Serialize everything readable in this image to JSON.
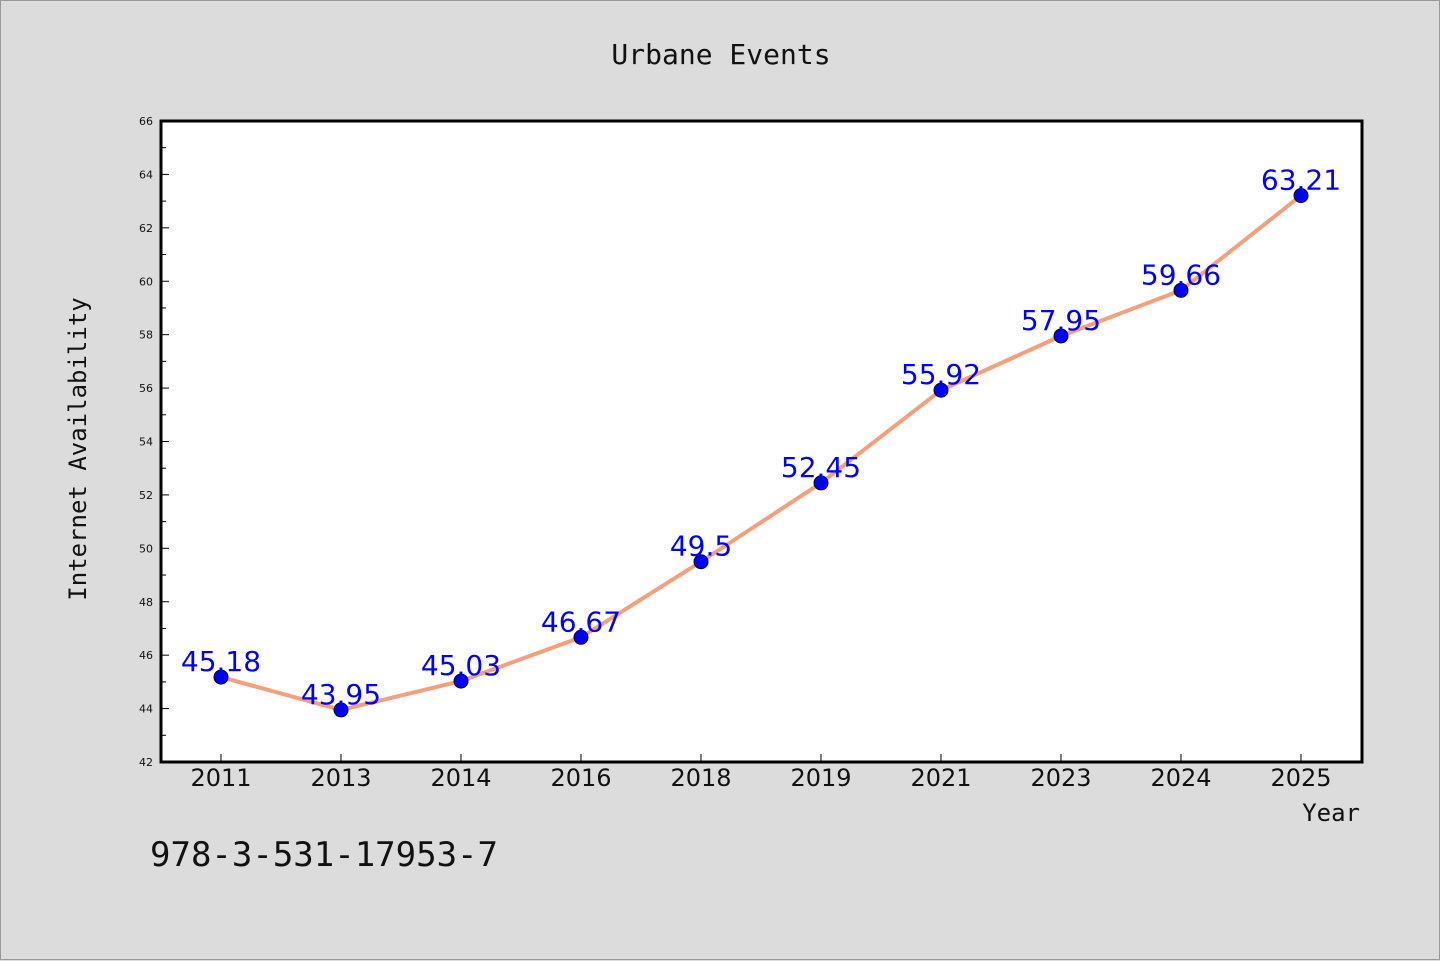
{
  "chart_data": {
    "type": "line",
    "title": "Urbane Events",
    "xlabel": "Year",
    "ylabel": "Internet Availability",
    "categories": [
      "2011",
      "2013",
      "2014",
      "2016",
      "2018",
      "2019",
      "2021",
      "2023",
      "2024",
      "2025"
    ],
    "series": [
      {
        "values": [
          45.18,
          43.95,
          45.03,
          46.67,
          49.5,
          52.45,
          55.92,
          57.95,
          59.66,
          63.21
        ],
        "labels": [
          "45.18",
          "43.95",
          "45.03",
          "46.67",
          "49.5",
          "52.45",
          "55.92",
          "57.95",
          "59.66",
          "63.21"
        ]
      }
    ],
    "ylim": [
      42,
      66
    ],
    "yticks": [
      "42",
      "44",
      "46",
      "48",
      "50",
      "52",
      "54",
      "56",
      "58",
      "60",
      "62",
      "64",
      "66"
    ],
    "grid": false,
    "legend": "none",
    "colors": {
      "line": "#f4a07c",
      "marker": "#0000ff",
      "label": "#0000ff",
      "background": "#dcdcdc",
      "plot_area": "#ffffff"
    }
  },
  "footer": {
    "isbn": "978-3-531-17953-7"
  }
}
